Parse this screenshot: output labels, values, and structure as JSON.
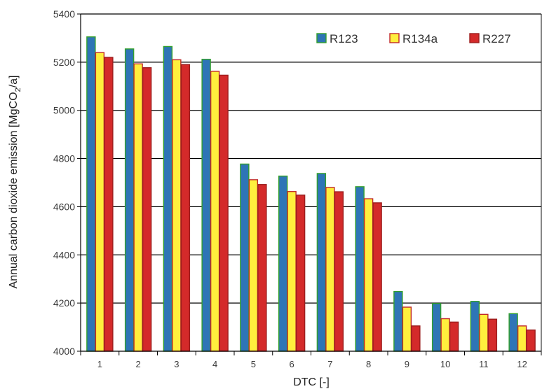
{
  "chart_data": {
    "type": "bar",
    "categories": [
      "1",
      "2",
      "3",
      "4",
      "5",
      "6",
      "7",
      "8",
      "9",
      "10",
      "11",
      "12"
    ],
    "series": [
      {
        "name": "R123",
        "color": "#2e75b6",
        "edge": "#33a02c",
        "values": [
          5305,
          5255,
          5265,
          5212,
          4777,
          4727,
          4738,
          4683,
          4248,
          4198,
          4207,
          4156
        ]
      },
      {
        "name": "R134a",
        "color": "#ffef3d",
        "edge": "#c0282a",
        "values": [
          5240,
          5193,
          5210,
          5162,
          4712,
          4663,
          4680,
          4633,
          4183,
          4135,
          4153,
          4105
        ]
      },
      {
        "name": "R227",
        "color": "#d42a2a",
        "edge": "#9c1e1e",
        "values": [
          5220,
          5177,
          5190,
          5146,
          4692,
          4648,
          4662,
          4616,
          4105,
          4121,
          4133,
          4088
        ]
      }
    ],
    "xlabel": "DTC [-]",
    "ylabel_main": "Annual carbon dioxide emission [MgCO",
    "ylabel_sub": "2",
    "ylabel_end": "/a]",
    "ylim": [
      4000,
      5400
    ],
    "yticks": [
      "4000",
      "4200",
      "4400",
      "4600",
      "4800",
      "5000",
      "5200",
      "5400"
    ],
    "grid": true,
    "legend_position": "top-right"
  }
}
